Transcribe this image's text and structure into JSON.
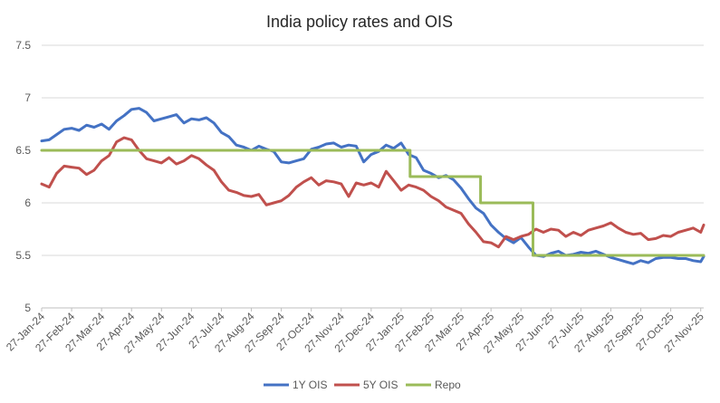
{
  "chart_data": {
    "type": "line",
    "title": "India policy rates and OIS",
    "xlabel": "",
    "ylabel": "",
    "ylim": [
      5,
      7.5
    ],
    "yticks": [
      "5",
      "5.5",
      "6",
      "6.5",
      "7",
      "7.5"
    ],
    "ytick_values": [
      5,
      5.5,
      6,
      6.5,
      7,
      7.5
    ],
    "grid": true,
    "legend_position": "bottom",
    "categories": [
      "27-Jan-24",
      "27-Feb-24",
      "27-Mar-24",
      "27-Apr-24",
      "27-May-24",
      "27-Jun-24",
      "27-Jul-24",
      "27-Aug-24",
      "27-Sep-24",
      "27-Oct-24",
      "27-Nov-24",
      "27-Dec-24",
      "27-Jan-25",
      "27-Feb-25",
      "27-Mar-25",
      "27-Apr-25",
      "27-May-25",
      "27-Jun-25",
      "27-Jul-25",
      "27-Aug-25",
      "27-Sep-25",
      "27-Oct-25",
      "27-Nov-25"
    ],
    "x_range": [
      0,
      22.1
    ],
    "series": [
      {
        "name": "1Y OIS",
        "color": "#4472C4",
        "x": [
          0,
          0.25,
          0.5,
          0.75,
          1,
          1.25,
          1.5,
          1.75,
          2,
          2.25,
          2.5,
          2.75,
          3,
          3.25,
          3.5,
          3.75,
          4,
          4.25,
          4.5,
          4.75,
          5,
          5.25,
          5.5,
          5.75,
          6,
          6.25,
          6.5,
          6.75,
          7,
          7.25,
          7.5,
          7.75,
          8,
          8.25,
          8.5,
          8.75,
          9,
          9.25,
          9.5,
          9.75,
          10,
          10.25,
          10.5,
          10.75,
          11,
          11.25,
          11.5,
          11.75,
          12,
          12.25,
          12.5,
          12.75,
          13,
          13.25,
          13.5,
          13.75,
          14,
          14.25,
          14.5,
          14.75,
          15,
          15.25,
          15.5,
          15.75,
          16,
          16.25,
          16.5,
          16.75,
          17,
          17.25,
          17.5,
          17.75,
          18,
          18.25,
          18.5,
          18.75,
          19,
          19.25,
          19.5,
          19.75,
          20,
          20.25,
          20.5,
          20.75,
          21,
          21.25,
          21.5,
          21.75,
          22,
          22.1
        ],
        "values": [
          6.59,
          6.6,
          6.65,
          6.7,
          6.71,
          6.69,
          6.74,
          6.72,
          6.75,
          6.7,
          6.78,
          6.83,
          6.89,
          6.9,
          6.86,
          6.78,
          6.8,
          6.82,
          6.84,
          6.76,
          6.8,
          6.79,
          6.81,
          6.76,
          6.67,
          6.63,
          6.55,
          6.53,
          6.5,
          6.54,
          6.51,
          6.49,
          6.39,
          6.38,
          6.4,
          6.42,
          6.51,
          6.53,
          6.56,
          6.57,
          6.53,
          6.55,
          6.54,
          6.39,
          6.46,
          6.49,
          6.55,
          6.52,
          6.57,
          6.46,
          6.43,
          6.31,
          6.28,
          6.24,
          6.26,
          6.22,
          6.14,
          6.04,
          5.95,
          5.9,
          5.79,
          5.72,
          5.66,
          5.62,
          5.67,
          5.58,
          5.5,
          5.49,
          5.52,
          5.54,
          5.5,
          5.51,
          5.53,
          5.52,
          5.54,
          5.51,
          5.48,
          5.46,
          5.44,
          5.42,
          5.45,
          5.43,
          5.47,
          5.48,
          5.48,
          5.47,
          5.47,
          5.45,
          5.44,
          5.49
        ]
      },
      {
        "name": "5Y OIS",
        "color": "#C0504D",
        "x": [
          0,
          0.25,
          0.5,
          0.75,
          1,
          1.25,
          1.5,
          1.75,
          2,
          2.25,
          2.5,
          2.75,
          3,
          3.25,
          3.5,
          3.75,
          4,
          4.25,
          4.5,
          4.75,
          5,
          5.25,
          5.5,
          5.75,
          6,
          6.25,
          6.5,
          6.75,
          7,
          7.25,
          7.5,
          7.75,
          8,
          8.25,
          8.5,
          8.75,
          9,
          9.25,
          9.5,
          9.75,
          10,
          10.25,
          10.5,
          10.75,
          11,
          11.25,
          11.5,
          11.75,
          12,
          12.25,
          12.5,
          12.75,
          13,
          13.25,
          13.5,
          13.75,
          14,
          14.25,
          14.5,
          14.75,
          15,
          15.25,
          15.5,
          15.75,
          16,
          16.25,
          16.5,
          16.75,
          17,
          17.25,
          17.5,
          17.75,
          18,
          18.25,
          18.5,
          18.75,
          19,
          19.25,
          19.5,
          19.75,
          20,
          20.25,
          20.5,
          20.75,
          21,
          21.25,
          21.5,
          21.75,
          22,
          22.1
        ],
        "values": [
          6.18,
          6.15,
          6.28,
          6.35,
          6.34,
          6.33,
          6.27,
          6.31,
          6.4,
          6.45,
          6.58,
          6.62,
          6.6,
          6.5,
          6.42,
          6.4,
          6.38,
          6.43,
          6.37,
          6.4,
          6.45,
          6.42,
          6.36,
          6.31,
          6.2,
          6.12,
          6.1,
          6.07,
          6.06,
          6.08,
          5.98,
          6.0,
          6.02,
          6.07,
          6.15,
          6.2,
          6.24,
          6.17,
          6.21,
          6.2,
          6.18,
          6.06,
          6.19,
          6.17,
          6.19,
          6.15,
          6.3,
          6.21,
          6.12,
          6.17,
          6.15,
          6.12,
          6.06,
          6.02,
          5.96,
          5.93,
          5.9,
          5.8,
          5.72,
          5.63,
          5.62,
          5.58,
          5.68,
          5.65,
          5.68,
          5.7,
          5.75,
          5.72,
          5.75,
          5.74,
          5.68,
          5.72,
          5.69,
          5.74,
          5.76,
          5.78,
          5.81,
          5.76,
          5.72,
          5.7,
          5.71,
          5.65,
          5.66,
          5.69,
          5.68,
          5.72,
          5.74,
          5.76,
          5.72,
          5.79
        ]
      },
      {
        "name": "Repo",
        "color": "#9BBB59",
        "x": [
          0,
          12.3,
          12.3,
          14.65,
          14.65,
          16.4,
          16.4,
          22.1
        ],
        "values": [
          6.5,
          6.5,
          6.25,
          6.25,
          6.0,
          6.0,
          5.5,
          5.5
        ]
      }
    ]
  }
}
